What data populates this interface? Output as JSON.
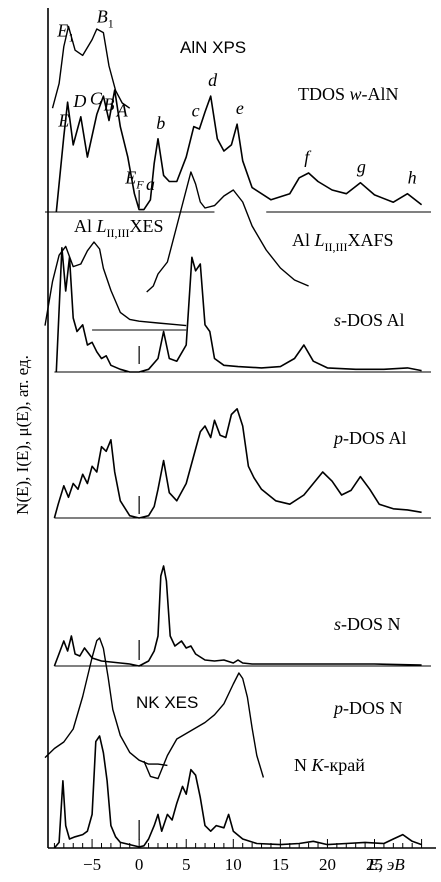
{
  "chart_data": {
    "type": "line",
    "title": "",
    "xlabel": "E, эВ",
    "ylabel": "N(E), I(E), μ(E), ат. ед.",
    "xlim": [
      -10,
      31
    ],
    "xticks": [
      -5,
      0,
      5,
      10,
      15,
      20,
      25
    ],
    "xtick_labels": [
      "−5",
      "0",
      "5",
      "10",
      "15",
      "20",
      "25"
    ],
    "grid": false,
    "series": [
      {
        "name": "AlN XPS",
        "x": [
          -9.2,
          -8.5,
          -8.0,
          -7.5,
          -6.8,
          -6.0,
          -5.0,
          -4.5,
          -3.8,
          -3.2,
          -2.5,
          -1.8,
          -1.0
        ],
        "y": [
          0.02,
          0.3,
          0.72,
          0.95,
          0.68,
          0.62,
          0.8,
          0.92,
          0.88,
          0.5,
          0.22,
          0.08,
          0.02
        ]
      },
      {
        "name": "TDOS w-AlN",
        "x": [
          -8.8,
          -8.0,
          -7.6,
          -7.0,
          -6.2,
          -5.5,
          -4.5,
          -3.8,
          -3.2,
          -2.6,
          -2.0,
          -1.2,
          -0.5,
          0.0,
          0.5,
          1.2,
          1.6,
          2.0,
          2.6,
          3.2,
          4.0,
          5.0,
          5.8,
          6.4,
          7.0,
          7.6,
          8.3,
          9.0,
          9.8,
          10.4,
          11.0,
          12.0,
          14.0,
          16.0,
          17.0,
          18.0,
          19.0,
          20.5,
          22.0,
          23.5,
          25.0,
          27.0,
          28.5,
          30.0
        ],
        "y": [
          0.0,
          0.62,
          0.9,
          0.55,
          0.78,
          0.45,
          0.8,
          0.95,
          0.75,
          1.0,
          0.7,
          0.45,
          0.15,
          0.02,
          0.02,
          0.1,
          0.4,
          0.6,
          0.3,
          0.25,
          0.25,
          0.45,
          0.7,
          0.68,
          0.82,
          0.95,
          0.6,
          0.5,
          0.55,
          0.72,
          0.42,
          0.2,
          0.1,
          0.15,
          0.28,
          0.32,
          0.25,
          0.18,
          0.15,
          0.24,
          0.14,
          0.08,
          0.15,
          0.06
        ]
      },
      {
        "name": "Al L_II,III XES",
        "x": [
          -10.0,
          -9.2,
          -8.5,
          -7.8,
          -7.0,
          -6.2,
          -5.5,
          -4.8,
          -4.2,
          -3.8,
          -3.0,
          -2.0,
          -1.0,
          0.0,
          2.0,
          4.0,
          5.0
        ],
        "y": [
          0.05,
          0.55,
          0.85,
          0.95,
          0.72,
          0.75,
          0.9,
          1.0,
          0.92,
          0.7,
          0.45,
          0.2,
          0.12,
          0.1,
          0.08,
          0.06,
          0.05
        ]
      },
      {
        "name": "Al L_II,III XAFS",
        "x": [
          0.8,
          1.5,
          2.0,
          3.0,
          4.0,
          5.0,
          5.5,
          6.0,
          6.5,
          7.0,
          8.0,
          9.0,
          10.0,
          11.0,
          12.0,
          13.5,
          15.0,
          16.5,
          18.0
        ],
        "y": [
          0.0,
          0.05,
          0.15,
          0.25,
          0.55,
          0.85,
          1.0,
          0.9,
          0.75,
          0.7,
          0.72,
          0.8,
          0.85,
          0.75,
          0.55,
          0.35,
          0.2,
          0.1,
          0.05
        ]
      },
      {
        "name": "s-DOS Al",
        "x": [
          -8.8,
          -8.2,
          -7.8,
          -7.4,
          -7.0,
          -6.6,
          -6.0,
          -5.5,
          -5.0,
          -4.5,
          -4.0,
          -3.5,
          -3.0,
          -2.0,
          -1.0,
          0.0,
          1.0,
          2.0,
          2.6,
          3.2,
          4.0,
          5.0,
          5.6,
          6.0,
          6.5,
          7.0,
          7.5,
          8.0,
          9.0,
          10.5,
          13.0,
          15.0,
          16.5,
          17.5,
          18.5,
          20.0,
          23.0,
          26.0,
          28.5,
          30.0
        ],
        "y": [
          0.0,
          0.92,
          0.6,
          0.85,
          0.4,
          0.3,
          0.35,
          0.2,
          0.22,
          0.15,
          0.1,
          0.12,
          0.05,
          0.02,
          0.0,
          0.0,
          0.02,
          0.1,
          0.3,
          0.1,
          0.08,
          0.2,
          0.85,
          0.75,
          0.8,
          0.35,
          0.3,
          0.1,
          0.05,
          0.04,
          0.03,
          0.04,
          0.1,
          0.2,
          0.08,
          0.03,
          0.02,
          0.02,
          0.03,
          0.01
        ]
      },
      {
        "name": "p-DOS Al",
        "x": [
          -9.0,
          -8.6,
          -8.0,
          -7.5,
          -7.0,
          -6.5,
          -6.0,
          -5.5,
          -5.0,
          -4.5,
          -4.0,
          -3.5,
          -3.0,
          -2.6,
          -2.0,
          -1.0,
          0.0,
          1.0,
          1.6,
          2.0,
          2.6,
          3.2,
          4.0,
          5.0,
          6.0,
          6.5,
          7.0,
          7.6,
          8.0,
          8.6,
          9.2,
          9.8,
          10.4,
          11.0,
          11.6,
          12.2,
          13.0,
          14.5,
          16.0,
          17.5,
          18.5,
          19.5,
          20.5,
          21.5,
          22.5,
          23.5,
          24.5,
          25.5,
          27.0,
          28.5,
          30.0
        ],
        "y": [
          0.0,
          0.12,
          0.28,
          0.18,
          0.3,
          0.25,
          0.38,
          0.3,
          0.45,
          0.4,
          0.62,
          0.58,
          0.68,
          0.4,
          0.15,
          0.02,
          0.0,
          0.02,
          0.1,
          0.25,
          0.5,
          0.22,
          0.15,
          0.3,
          0.6,
          0.75,
          0.8,
          0.7,
          0.85,
          0.72,
          0.7,
          0.9,
          0.95,
          0.8,
          0.45,
          0.35,
          0.25,
          0.15,
          0.12,
          0.2,
          0.3,
          0.4,
          0.32,
          0.2,
          0.24,
          0.36,
          0.25,
          0.12,
          0.08,
          0.07,
          0.05
        ]
      },
      {
        "name": "s-DOS N",
        "x": [
          -9.0,
          -8.6,
          -8.0,
          -7.6,
          -7.2,
          -6.8,
          -6.3,
          -5.8,
          -5.0,
          -4.0,
          -3.0,
          -2.0,
          -1.0,
          0.0,
          1.0,
          1.6,
          2.0,
          2.3,
          2.6,
          2.9,
          3.3,
          3.8,
          4.5,
          5.0,
          5.5,
          6.0,
          7.0,
          8.0,
          9.0,
          10.0,
          10.5,
          11.0,
          12.0,
          14.0,
          17.0,
          20.0,
          25.0,
          30.0
        ],
        "y": [
          0.0,
          0.1,
          0.25,
          0.15,
          0.3,
          0.12,
          0.1,
          0.18,
          0.08,
          0.05,
          0.04,
          0.03,
          0.02,
          0.0,
          0.05,
          0.15,
          0.3,
          0.9,
          1.0,
          0.85,
          0.3,
          0.2,
          0.25,
          0.18,
          0.2,
          0.12,
          0.06,
          0.05,
          0.06,
          0.03,
          0.06,
          0.03,
          0.02,
          0.02,
          0.02,
          0.02,
          0.02,
          0.01
        ]
      },
      {
        "name": "NK XES",
        "x": [
          -10.0,
          -9.0,
          -8.0,
          -7.0,
          -6.0,
          -5.0,
          -4.5,
          -4.2,
          -3.8,
          -3.3,
          -2.8,
          -2.0,
          -1.0,
          0.0,
          1.0,
          2.0,
          3.0
        ],
        "y": [
          0.08,
          0.15,
          0.2,
          0.3,
          0.55,
          0.85,
          0.98,
          1.0,
          0.92,
          0.7,
          0.45,
          0.25,
          0.12,
          0.06,
          0.03,
          0.03,
          0.02
        ]
      },
      {
        "name": "N K-край",
        "x": [
          0.5,
          1.2,
          2.0,
          3.0,
          4.0,
          5.0,
          6.0,
          7.0,
          8.0,
          9.0,
          10.0,
          10.6,
          11.0,
          11.5,
          12.0,
          12.5,
          13.2
        ],
        "y": [
          0.2,
          0.06,
          0.04,
          0.25,
          0.4,
          0.45,
          0.5,
          0.55,
          0.62,
          0.72,
          0.9,
          1.0,
          0.95,
          0.78,
          0.5,
          0.25,
          0.05
        ]
      },
      {
        "name": "p-DOS N",
        "x": [
          -9.0,
          -8.5,
          -8.1,
          -7.8,
          -7.4,
          -6.8,
          -6.0,
          -5.5,
          -5.0,
          -4.6,
          -4.2,
          -3.8,
          -3.4,
          -3.0,
          -2.5,
          -2.0,
          -1.0,
          0.0,
          0.5,
          1.0,
          1.6,
          2.0,
          2.4,
          3.0,
          3.5,
          4.0,
          4.6,
          5.0,
          5.5,
          6.0,
          6.5,
          7.0,
          7.6,
          8.2,
          9.0,
          9.5,
          10.0,
          11.0,
          12.5,
          15.0,
          17.0,
          18.5,
          20.0,
          22.0,
          24.0,
          26.0,
          27.0,
          28.0,
          29.0,
          30.0
        ],
        "y": [
          0.0,
          0.05,
          0.6,
          0.2,
          0.08,
          0.1,
          0.12,
          0.15,
          0.3,
          0.95,
          1.0,
          0.85,
          0.6,
          0.2,
          0.1,
          0.05,
          0.03,
          0.01,
          0.02,
          0.08,
          0.2,
          0.3,
          0.15,
          0.3,
          0.25,
          0.4,
          0.55,
          0.48,
          0.7,
          0.65,
          0.45,
          0.2,
          0.15,
          0.2,
          0.18,
          0.3,
          0.15,
          0.08,
          0.04,
          0.03,
          0.04,
          0.06,
          0.03,
          0.04,
          0.05,
          0.04,
          0.08,
          0.12,
          0.06,
          0.03
        ]
      }
    ],
    "annotations": [
      {
        "text": "E",
        "sub": "1",
        "x": -7.8,
        "series": "AlN XPS"
      },
      {
        "text": "B",
        "sub": "1",
        "x": -3.6,
        "series": "AlN XPS"
      },
      {
        "text": "E",
        "sub": "",
        "x": -8.0,
        "series": "TDOS w-AlN"
      },
      {
        "text": "D",
        "sub": "",
        "x": -6.3,
        "series": "TDOS w-AlN"
      },
      {
        "text": "C",
        "sub": "",
        "x": -4.6,
        "series": "TDOS w-AlN"
      },
      {
        "text": "B",
        "sub": "",
        "x": -3.2,
        "series": "TDOS w-AlN"
      },
      {
        "text": "A",
        "sub": "",
        "x": -1.8,
        "series": "TDOS w-AlN"
      },
      {
        "text": "E",
        "sub": "F",
        "x": -0.5,
        "series": "TDOS w-AlN"
      },
      {
        "text": "a",
        "sub": "",
        "x": 1.2,
        "series": "TDOS w-AlN"
      },
      {
        "text": "b",
        "sub": "",
        "x": 2.3,
        "series": "TDOS w-AlN"
      },
      {
        "text": "c",
        "sub": "",
        "x": 6.0,
        "series": "TDOS w-AlN"
      },
      {
        "text": "d",
        "sub": "",
        "x": 7.8,
        "series": "TDOS w-AlN"
      },
      {
        "text": "e",
        "sub": "",
        "x": 10.7,
        "series": "TDOS w-AlN"
      },
      {
        "text": "f",
        "sub": "",
        "x": 17.8,
        "series": "TDOS w-AlN"
      },
      {
        "text": "g",
        "sub": "",
        "x": 23.6,
        "series": "TDOS w-AlN"
      },
      {
        "text": "h",
        "sub": "",
        "x": 29.0,
        "series": "TDOS w-AlN"
      }
    ],
    "panel_labels": {
      "xps": "AlN XPS",
      "tdos": {
        "italic": "",
        "pre": "TDOS ",
        "it": "w",
        "post": "-AlN"
      },
      "al_xes": {
        "pre": "Al ",
        "it": "L",
        "sub": "II,III",
        "post": "XES"
      },
      "al_xafs": {
        "pre": "Al ",
        "it": "L",
        "sub": "II,III",
        "post": "XAFS"
      },
      "sdos_al": {
        "it": "s",
        "post": "-DOS Al"
      },
      "pdos_al": {
        "it": "p",
        "post": "-DOS Al"
      },
      "sdos_n": {
        "it": "s",
        "post": "-DOS N"
      },
      "nk_xes": "NK XES",
      "pdos_n": {
        "it": "p",
        "post": "-DOS N"
      },
      "nk_edge": {
        "pre": "N ",
        "it": "K",
        "post": "-край"
      }
    }
  }
}
